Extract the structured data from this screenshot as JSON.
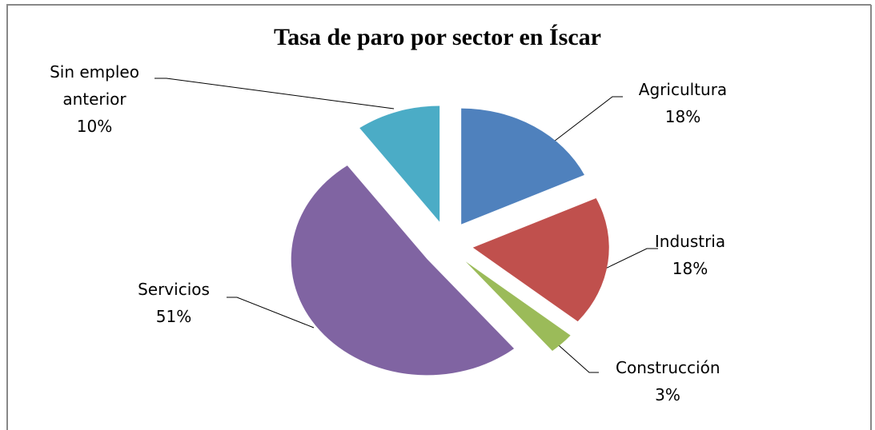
{
  "chart_data": {
    "type": "pie",
    "title": "Tasa de paro por sector en Íscar",
    "categories": [
      "Agricultura",
      "Industria",
      "Construcción",
      "Servicios",
      "Sin empleo anterior"
    ],
    "values": [
      18,
      18,
      3,
      51,
      10
    ],
    "value_labels": [
      "18%",
      "18%",
      "3%",
      "51%",
      "10%"
    ],
    "colors": [
      "#4f81bd",
      "#c0504d",
      "#9bbb59",
      "#8064a2",
      "#4bacc6"
    ],
    "exploded": true
  }
}
